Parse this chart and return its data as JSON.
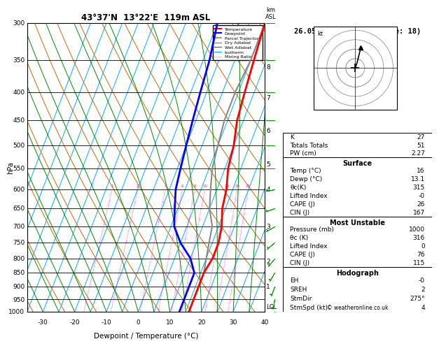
{
  "title_left": "43°37'N  13°22'E  119m ASL",
  "title_right": "26.05.2024  06GMT  (Base: 18)",
  "ylabel_left": "hPa",
  "xlabel": "Dewpoint / Temperature (°C)",
  "pressure_levels": [
    300,
    350,
    400,
    450,
    500,
    550,
    600,
    650,
    700,
    750,
    800,
    850,
    900,
    950,
    1000
  ],
  "temp_x": [
    5,
    6,
    7,
    8,
    10,
    11,
    13,
    14,
    16,
    17,
    17,
    16,
    16,
    16,
    16
  ],
  "temp_p": [
    300,
    350,
    400,
    450,
    500,
    550,
    600,
    650,
    700,
    750,
    800,
    850,
    900,
    950,
    1000
  ],
  "dewp_x": [
    -10,
    -8,
    -7,
    -6,
    -5,
    -4,
    -3,
    -1,
    1,
    5,
    10,
    13,
    13,
    13,
    13
  ],
  "dewp_p": [
    300,
    350,
    400,
    450,
    500,
    550,
    600,
    650,
    700,
    750,
    800,
    850,
    900,
    950,
    1000
  ],
  "parcel_x": [
    5,
    5,
    4,
    4,
    5,
    6,
    8,
    10,
    13,
    14,
    15,
    16,
    16,
    16,
    16
  ],
  "parcel_p": [
    300,
    350,
    400,
    450,
    500,
    550,
    600,
    650,
    700,
    750,
    800,
    850,
    900,
    950,
    1000
  ],
  "xmin": -35,
  "xmax": 40,
  "pmin": 300,
  "pmax": 1000,
  "skew_factor": 35.0,
  "mixing_ratio_values": [
    1,
    2,
    4,
    6,
    8,
    10,
    16,
    20,
    25
  ],
  "km_labels": [
    1,
    2,
    3,
    4,
    5,
    6,
    7,
    8
  ],
  "km_pressures": [
    900,
    810,
    700,
    600,
    540,
    470,
    410,
    360
  ],
  "lcl_pressure": 980,
  "lcl_label": "LCL",
  "temp_color": "#ff0000",
  "dewp_color": "#0000ff",
  "parcel_color": "#888888",
  "dry_adiabat_color": "#cc6600",
  "wet_adiabat_color": "#008800",
  "isotherm_color": "#00aaff",
  "mixing_ratio_color": "#ff00ff",
  "background_color": "#ffffff",
  "temp_tick_vals": [
    -30,
    -20,
    -10,
    0,
    10,
    20,
    30,
    40
  ],
  "stats_K": "27",
  "stats_TT": "51",
  "stats_PW": "2.27",
  "surf_temp": "16",
  "surf_dewp": "13.1",
  "surf_theta": "315",
  "surf_li": "-0",
  "surf_cape": "26",
  "surf_cin": "167",
  "mu_pres": "1000",
  "mu_theta": "316",
  "mu_li": "0",
  "mu_cape": "76",
  "mu_cin": "115",
  "hodo_eh": "-0",
  "hodo_sreh": "2",
  "hodo_dir": "275°",
  "hodo_spd": "4",
  "wbarb_pressures": [
    1000,
    950,
    900,
    850,
    800,
    750,
    700,
    650,
    600,
    550,
    500,
    450,
    400,
    350,
    300
  ],
  "wbarb_speeds": [
    5,
    5,
    5,
    5,
    5,
    5,
    5,
    5,
    5,
    10,
    10,
    15,
    15,
    20,
    20
  ],
  "wbarb_dirs": [
    180,
    190,
    200,
    210,
    220,
    230,
    240,
    250,
    260,
    270,
    270,
    270,
    270,
    270,
    270
  ]
}
